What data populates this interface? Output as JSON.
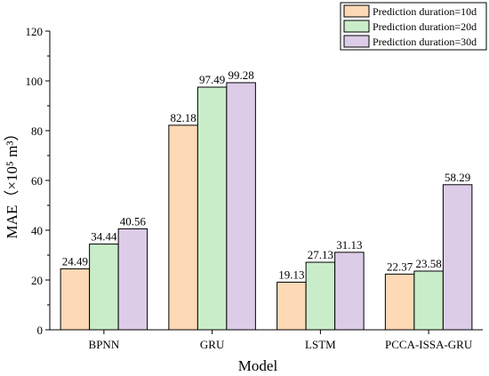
{
  "chart_data": {
    "type": "bar",
    "categories": [
      "BPNN",
      "GRU",
      "LSTM",
      "PCCA-ISSA-GRU"
    ],
    "series": [
      {
        "name": "Prediction duration=10d",
        "color": "#FDD9B5",
        "values": [
          24.49,
          82.18,
          19.13,
          22.37
        ]
      },
      {
        "name": "Prediction duration=20d",
        "color": "#C9EDC9",
        "values": [
          34.44,
          97.49,
          27.13,
          23.58
        ]
      },
      {
        "name": "Prediction duration=30d",
        "color": "#DCCCE8",
        "values": [
          40.56,
          99.28,
          31.13,
          58.29
        ]
      }
    ],
    "data_labels": [
      [
        "24.49",
        "82.18",
        "19.13",
        "22.37"
      ],
      [
        "34.44",
        "97.49",
        "27.13",
        "23.58"
      ],
      [
        "40.56",
        "99.28",
        "31.13",
        "58.29"
      ]
    ],
    "title": "",
    "xlabel": "Model",
    "ylabel": "MAE（×10⁵ m³）",
    "ylim": [
      0,
      120
    ],
    "yticks": [
      0,
      20,
      40,
      60,
      80,
      100,
      120
    ],
    "ytick_labels": [
      "0",
      "20",
      "40",
      "60",
      "80",
      "100",
      "120"
    ],
    "grid": false,
    "legend_position": "top-right"
  }
}
